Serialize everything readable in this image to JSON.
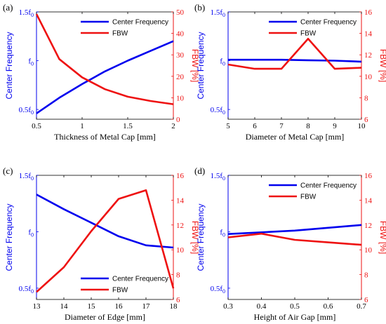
{
  "colors": {
    "left": "#0000ee",
    "right": "#ee1111",
    "axis": "#000000"
  },
  "chart_data": [
    {
      "type": "line",
      "panel_label": "(a)",
      "xlabel": "Thickness of Metal Cap [mm]",
      "ylabel_left": "Center Frequency",
      "ylabel_right": "FBW [%]",
      "xlim": [
        0.5,
        2
      ],
      "xticks": [
        "0.5",
        "1",
        "1.5",
        "2"
      ],
      "ylim_left": [
        0.4,
        1.5
      ],
      "yticks_left": [
        {
          "v": 0.5,
          "base": "0.5f",
          "sub": "0"
        },
        {
          "v": 1,
          "base": "f",
          "sub": "0"
        },
        {
          "v": 1.5,
          "base": "1.5f",
          "sub": "0"
        }
      ],
      "ylim_right": [
        0,
        50
      ],
      "yticks_right": [
        "0",
        "10",
        "20",
        "30",
        "40",
        "50"
      ],
      "legend_placement": "top-right",
      "series": [
        {
          "name": "Center Frequency",
          "axis": "left",
          "x": [
            0.5,
            0.75,
            1,
            1.25,
            1.5,
            1.75,
            2
          ],
          "y": [
            0.46,
            0.62,
            0.76,
            0.89,
            1.0,
            1.1,
            1.2
          ]
        },
        {
          "name": "FBW",
          "axis": "right",
          "x": [
            0.5,
            0.75,
            1,
            1.25,
            1.5,
            1.75,
            2
          ],
          "y": [
            49,
            28,
            19.5,
            14,
            10.5,
            8.5,
            7
          ]
        }
      ]
    },
    {
      "type": "line",
      "panel_label": "(b)",
      "xlabel": "Diameter of Metal Cap [mm]",
      "ylabel_left": "Center Frequency",
      "ylabel_right": "FBW [%]",
      "xlim": [
        5,
        10
      ],
      "xticks": [
        "5",
        "6",
        "7",
        "8",
        "9",
        "10"
      ],
      "ylim_left": [
        0.4,
        1.5
      ],
      "yticks_left": [
        {
          "v": 0.5,
          "base": "0.5f",
          "sub": "0"
        },
        {
          "v": 1,
          "base": "f",
          "sub": "0"
        },
        {
          "v": 1.5,
          "base": "1.5f",
          "sub": "0"
        }
      ],
      "ylim_right": [
        6,
        16
      ],
      "yticks_right": [
        "6",
        "8",
        "10",
        "12",
        "14",
        "16"
      ],
      "legend_placement": "top-right",
      "series": [
        {
          "name": "Center Frequency",
          "axis": "left",
          "x": [
            5,
            6,
            7,
            8,
            9,
            10
          ],
          "y": [
            1.01,
            1.01,
            1.01,
            1.005,
            1.0,
            0.99
          ]
        },
        {
          "name": "FBW",
          "axis": "right",
          "x": [
            5,
            6,
            7,
            8,
            9,
            10
          ],
          "y": [
            11.1,
            10.7,
            10.7,
            13.5,
            10.7,
            10.8
          ]
        }
      ]
    },
    {
      "type": "line",
      "panel_label": "(c)",
      "xlabel": "Diameter of Edge [mm]",
      "ylabel_left": "Center Frequency",
      "ylabel_right": "FBW [%]",
      "xlim": [
        13,
        18
      ],
      "xticks": [
        "13",
        "14",
        "15",
        "16",
        "17",
        "18"
      ],
      "ylim_left": [
        0.4,
        1.5
      ],
      "yticks_left": [
        {
          "v": 0.5,
          "base": "0.5f",
          "sub": "0"
        },
        {
          "v": 1,
          "base": "f",
          "sub": "0"
        },
        {
          "v": 1.5,
          "base": "1.5f",
          "sub": "0"
        }
      ],
      "ylim_right": [
        6,
        16
      ],
      "yticks_right": [
        "6",
        "8",
        "10",
        "12",
        "14",
        "16"
      ],
      "legend_placement": "bottom-right",
      "series": [
        {
          "name": "Center Frequency",
          "axis": "left",
          "x": [
            13,
            14,
            15,
            16,
            17,
            18
          ],
          "y": [
            1.33,
            1.2,
            1.08,
            0.96,
            0.88,
            0.86
          ]
        },
        {
          "name": "FBW",
          "axis": "right",
          "x": [
            13,
            14,
            15,
            16,
            17,
            18
          ],
          "y": [
            6.6,
            8.6,
            11.5,
            14.1,
            14.8,
            6.9
          ]
        }
      ]
    },
    {
      "type": "line",
      "panel_label": "(d)",
      "xlabel": "Height of Air Gap [mm]",
      "ylabel_left": "Center Frequency",
      "ylabel_right": "FBW [%]",
      "xlim": [
        0.3,
        0.7
      ],
      "xticks": [
        "0.3",
        "0.4",
        "0.5",
        "0.6",
        "0.7"
      ],
      "ylim_left": [
        0.4,
        1.5
      ],
      "yticks_left": [
        {
          "v": 0.5,
          "base": "0.5f",
          "sub": "0"
        },
        {
          "v": 1,
          "base": "f",
          "sub": "0"
        },
        {
          "v": 1.5,
          "base": "1.5f",
          "sub": "0"
        }
      ],
      "ylim_right": [
        6,
        16
      ],
      "yticks_right": [
        "6",
        "8",
        "10",
        "12",
        "14",
        "16"
      ],
      "legend_placement": "top-right",
      "series": [
        {
          "name": "Center Frequency",
          "axis": "left",
          "x": [
            0.3,
            0.4,
            0.5,
            0.6,
            0.7
          ],
          "y": [
            0.98,
            0.995,
            1.01,
            1.035,
            1.06
          ]
        },
        {
          "name": "FBW",
          "axis": "right",
          "x": [
            0.3,
            0.4,
            0.5,
            0.6,
            0.7
          ],
          "y": [
            11.0,
            11.3,
            10.8,
            10.6,
            10.4
          ]
        }
      ]
    }
  ]
}
